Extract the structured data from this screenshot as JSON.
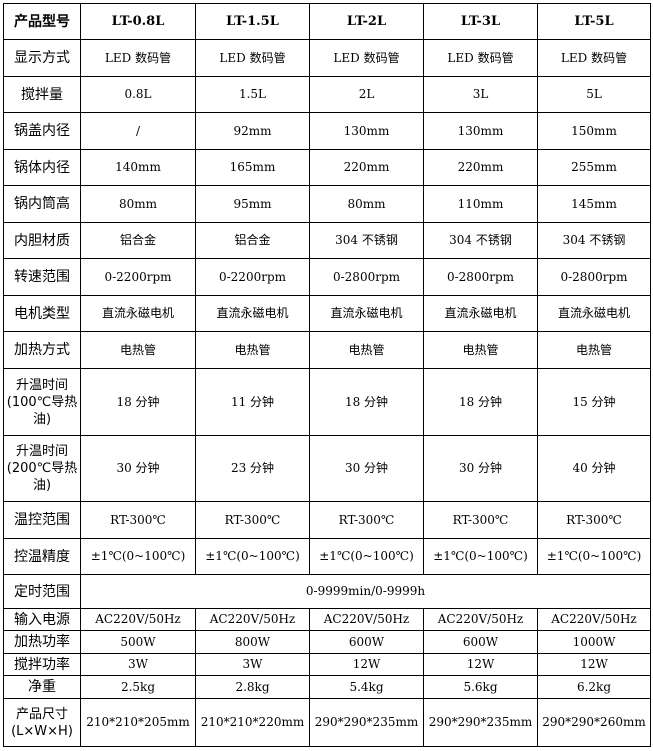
{
  "header": {
    "label": "产品型号",
    "models": [
      "LT-0.8L",
      "LT-1.5L",
      "LT-2L",
      "LT-3L",
      "LT-5L"
    ]
  },
  "rows": [
    {
      "label": "显示方式",
      "values": [
        "LED 数码管",
        "LED 数码管",
        "LED 数码管",
        "LED 数码管",
        "LED 数码管"
      ]
    },
    {
      "label": "搅拌量",
      "values": [
        "0.8L",
        "1.5L",
        "2L",
        "3L",
        "5L"
      ]
    },
    {
      "label": "锅盖内径",
      "values": [
        "/",
        "92mm",
        "130mm",
        "130mm",
        "150mm"
      ]
    },
    {
      "label": "锅体内径",
      "values": [
        "140mm",
        "165mm",
        "220mm",
        "220mm",
        "255mm"
      ]
    },
    {
      "label": "锅内筒高",
      "values": [
        "80mm",
        "95mm",
        "80mm",
        "110mm",
        "145mm"
      ]
    },
    {
      "label": "内胆材质",
      "values": [
        "铝合金",
        "铝合金",
        "304 不锈钢",
        "304 不锈钢",
        "304 不锈钢"
      ]
    },
    {
      "label": "转速范围",
      "values": [
        "0-2200rpm",
        "0-2200rpm",
        "0-2800rpm",
        "0-2800rpm",
        "0-2800rpm"
      ]
    },
    {
      "label": "电机类型",
      "values": [
        "直流永磁电机",
        "直流永磁电机",
        "直流永磁电机",
        "直流永磁电机",
        "直流永磁电机"
      ]
    },
    {
      "label": "加热方式",
      "values": [
        "电热管",
        "电热管",
        "电热管",
        "电热管",
        "电热管"
      ]
    },
    {
      "label": "升温时间(100℃导热油)",
      "values": [
        "18 分钟",
        "11 分钟",
        "18 分钟",
        "18 分钟",
        "15 分钟"
      ]
    },
    {
      "label": "升温时间(200℃导热油)",
      "values": [
        "30 分钟",
        "23 分钟",
        "30 分钟",
        "30 分钟",
        "40 分钟"
      ]
    },
    {
      "label": "温控范围",
      "values": [
        "RT-300℃",
        "RT-300℃",
        "RT-300℃",
        "RT-300℃",
        "RT-300℃"
      ]
    },
    {
      "label": "控温精度",
      "values": [
        "±1℃(0~100℃)",
        "±1℃(0~100℃)",
        "±1℃(0~100℃)",
        "±1℃(0~100℃)",
        "±1℃(0~100℃)"
      ]
    }
  ],
  "timer": {
    "label": "定时范围",
    "value": "0-9999min/0-9999h"
  },
  "rows2": [
    {
      "label": "输入电源",
      "values": [
        "AC220V/50Hz",
        "AC220V/50Hz",
        "AC220V/50Hz",
        "AC220V/50Hz",
        "AC220V/50Hz"
      ]
    },
    {
      "label": "加热功率",
      "values": [
        "500W",
        "800W",
        "600W",
        "600W",
        "1000W"
      ]
    },
    {
      "label": "搅拌功率",
      "values": [
        "3W",
        "3W",
        "12W",
        "12W",
        "12W"
      ]
    },
    {
      "label": "净重",
      "values": [
        "2.5kg",
        "2.8kg",
        "5.4kg",
        "5.6kg",
        "6.2kg"
      ]
    },
    {
      "label": "产品尺寸(L×W×H)",
      "values": [
        "210*210*205mm",
        "210*210*220mm",
        "290*290*235mm",
        "290*290*235mm",
        "290*290*260mm"
      ]
    }
  ]
}
